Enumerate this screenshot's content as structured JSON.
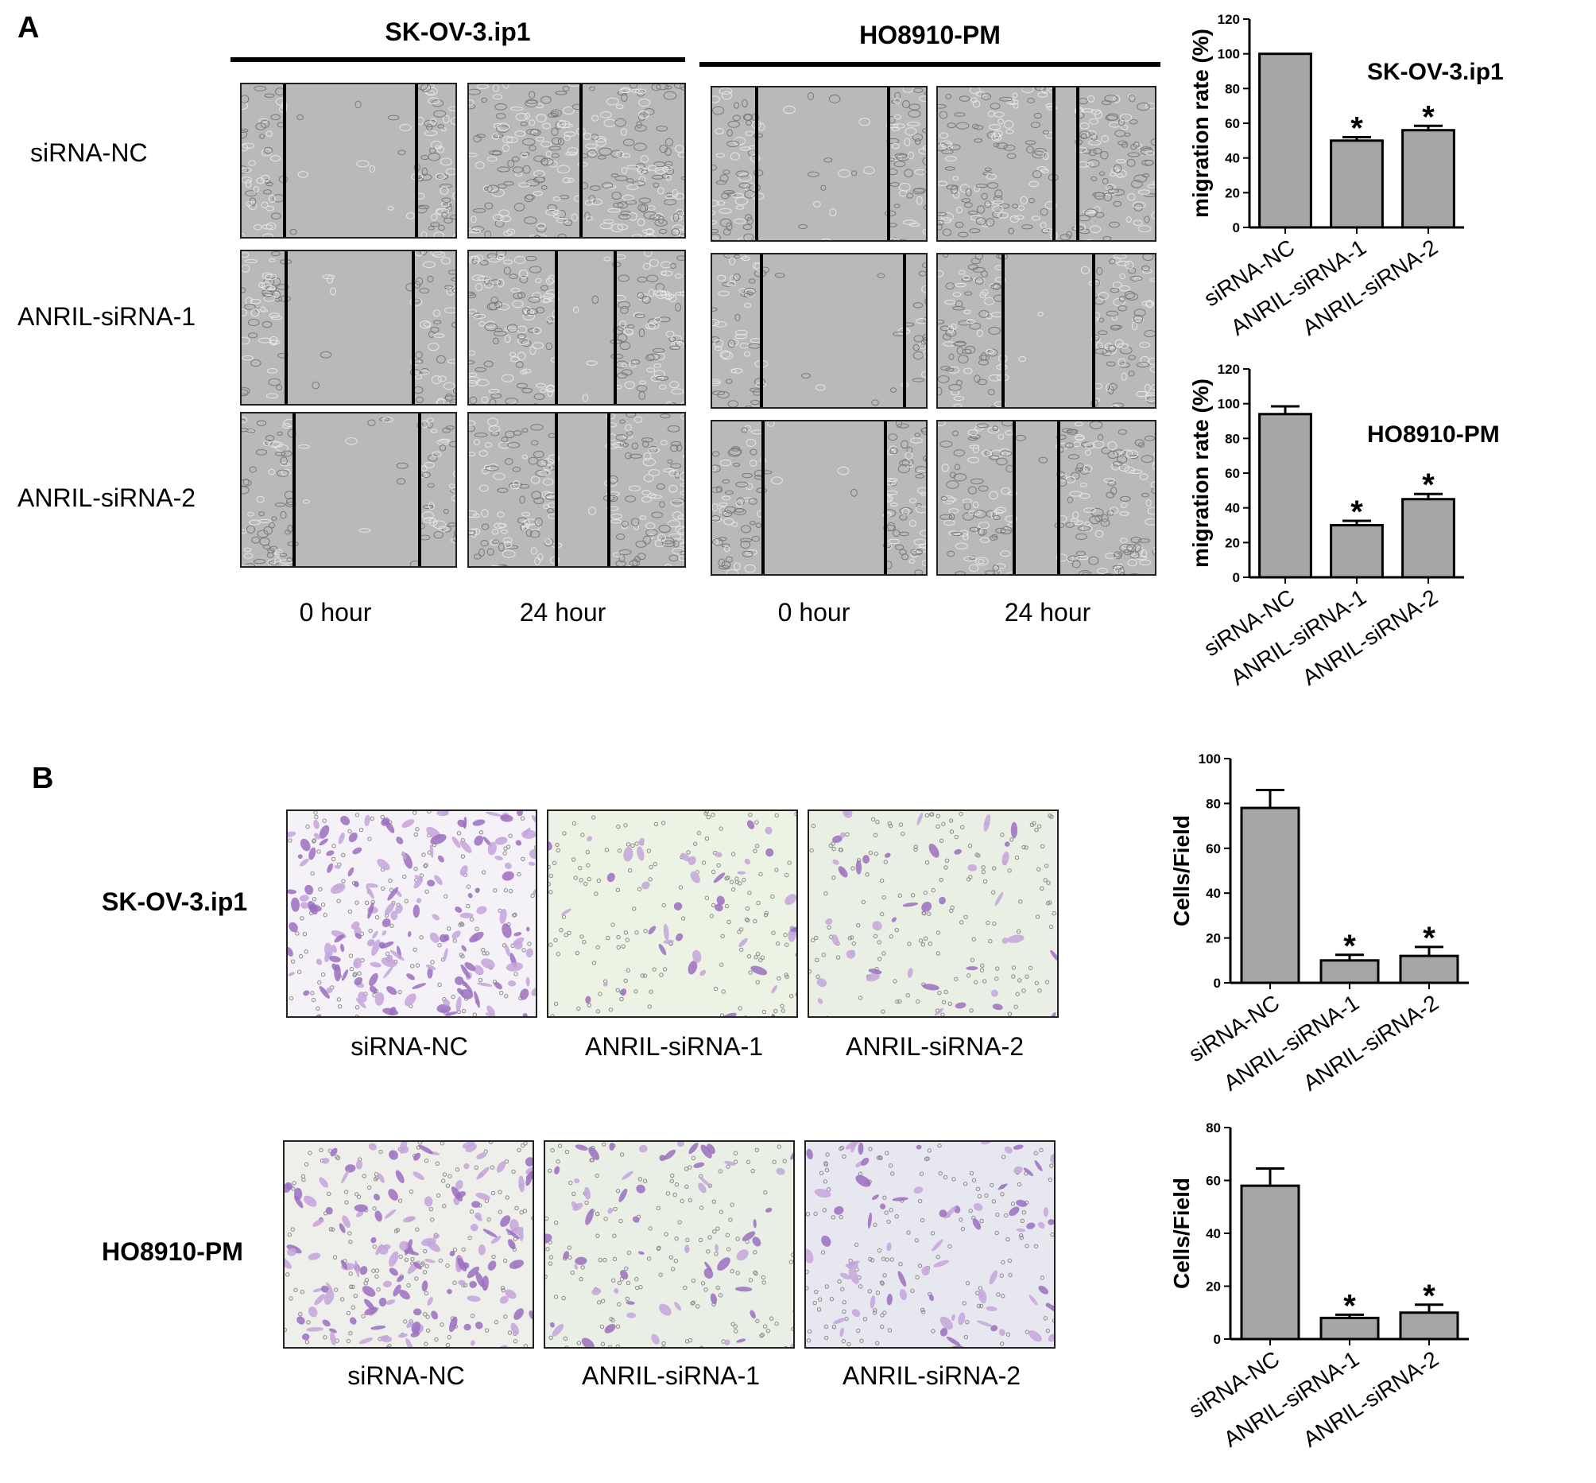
{
  "panel_labels": {
    "a": "A",
    "b": "B"
  },
  "panel_a": {
    "cell_lines": [
      "SK-OV-3.ip1",
      "HO8910-PM"
    ],
    "rows": [
      "siRNA-NC",
      "ANRIL-siRNA-1",
      "ANRIL-siRNA-2"
    ],
    "timepoints": [
      "0 hour",
      "24 hour",
      "0 hour",
      "24 hour"
    ]
  },
  "panel_b": {
    "cell_lines": [
      "SK-OV-3.ip1",
      "HO8910-PM"
    ],
    "captions_row1": [
      "siRNA-NC",
      "ANRIL-siRNA-1",
      "ANRIL-siRNA-2"
    ],
    "captions_row2": [
      "siRNA-NC",
      "ANRIL-siRNA-1",
      "ANRIL-siRNA-2"
    ]
  },
  "chart_data": [
    {
      "type": "bar",
      "title": "SK-OV-3.ip1",
      "ylabel": "migration rate (%)",
      "categories": [
        "siRNA-NC",
        "ANRIL-siRNA-1",
        "ANRIL-siRNA-2"
      ],
      "values": [
        100,
        50,
        56
      ],
      "errors": [
        0,
        2,
        2.5
      ],
      "significance": [
        "",
        "*",
        "*"
      ],
      "ylim": [
        0,
        120
      ],
      "yticks": [
        "0",
        "20",
        "40",
        "60",
        "80",
        "100",
        "120"
      ]
    },
    {
      "type": "bar",
      "title": "HO8910-PM",
      "ylabel": "migration rate (%)",
      "categories": [
        "siRNA-NC",
        "ANRIL-siRNA-1",
        "ANRIL-siRNA-2"
      ],
      "values": [
        94,
        30,
        45
      ],
      "errors": [
        4.5,
        2.5,
        3
      ],
      "significance": [
        "",
        "*",
        "*"
      ],
      "ylim": [
        0,
        120
      ],
      "yticks": [
        "0",
        "20",
        "40",
        "60",
        "80",
        "100",
        "120"
      ]
    },
    {
      "type": "bar",
      "title": "",
      "ylabel": "Cells/Field",
      "categories": [
        "siRNA-NC",
        "ANRIL-siRNA-1",
        "ANRIL-siRNA-2"
      ],
      "values": [
        78,
        10,
        12
      ],
      "errors": [
        8,
        2.5,
        4
      ],
      "significance": [
        "",
        "*",
        "*"
      ],
      "ylim": [
        0,
        100
      ],
      "yticks": [
        "0",
        "20",
        "40",
        "60",
        "80",
        "100"
      ]
    },
    {
      "type": "bar",
      "title": "",
      "ylabel": "Cells/Field",
      "categories": [
        "siRNA-NC",
        "ANRIL-siRNA-1",
        "ANRIL-siRNA-2"
      ],
      "values": [
        58,
        8,
        10
      ],
      "errors": [
        6.5,
        1.2,
        3
      ],
      "significance": [
        "",
        "*",
        "*"
      ],
      "ylim": [
        0,
        80
      ],
      "yticks": [
        "0",
        "20",
        "40",
        "60",
        "80"
      ]
    }
  ]
}
